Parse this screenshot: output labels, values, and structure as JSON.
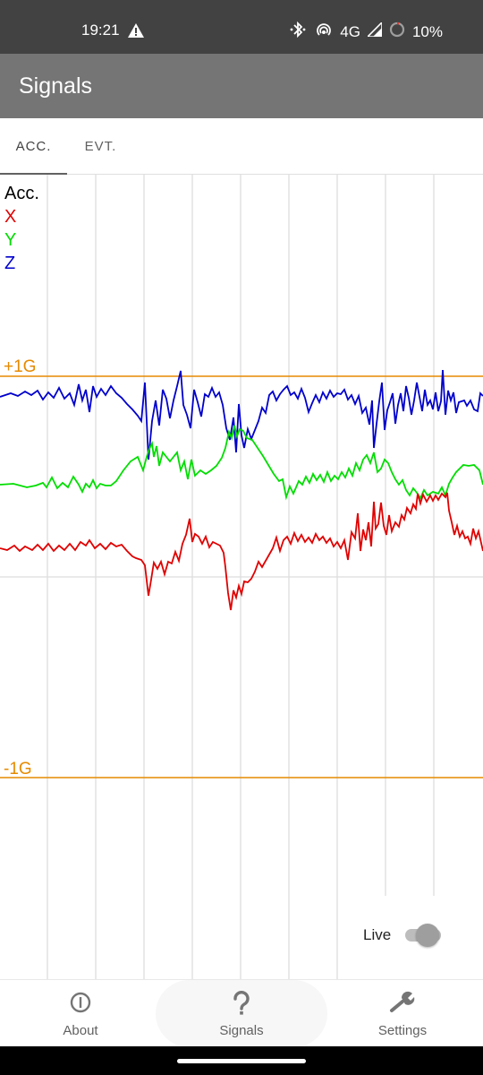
{
  "status_bar": {
    "time": "19:21",
    "network": "4G",
    "battery": "10%",
    "icons": [
      "alert-icon",
      "bluetooth-icon",
      "hotspot-icon",
      "signal-icon",
      "battery-icon"
    ]
  },
  "app_bar": {
    "title": "Signals"
  },
  "tabs": [
    {
      "label": "ACC.",
      "active": true
    },
    {
      "label": "EVT.",
      "active": false
    }
  ],
  "chart": {
    "legend_title": "Acc.",
    "series": [
      {
        "name": "X",
        "color": "#e00000"
      },
      {
        "name": "Y",
        "color": "#00dd00"
      },
      {
        "name": "Z",
        "color": "#0000cc"
      }
    ],
    "upper_label": "+1G",
    "lower_label": "-1G",
    "reference_color": "#e68a00"
  },
  "live": {
    "label": "Live",
    "enabled": false
  },
  "bottom_nav": [
    {
      "label": "About",
      "icon": "info-icon",
      "active": false
    },
    {
      "label": "Signals",
      "icon": "question-icon",
      "active": true
    },
    {
      "label": "Settings",
      "icon": "wrench-icon",
      "active": false
    }
  ]
}
